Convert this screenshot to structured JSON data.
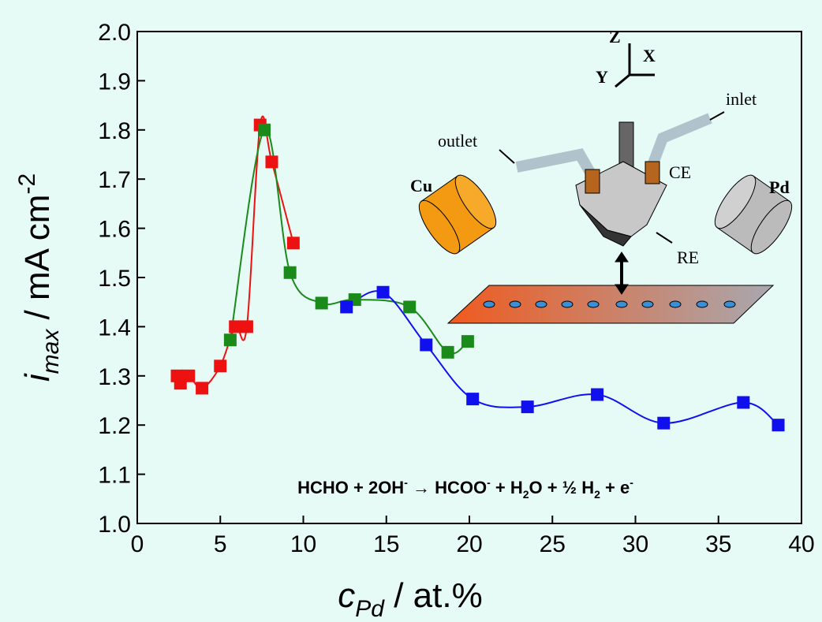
{
  "chart_data": {
    "type": "scatter-line",
    "xlabel": {
      "main": "c",
      "sub": "Pd",
      "rest": " / at.%"
    },
    "ylabel": {
      "main": "i",
      "sub": "max",
      "rest": " / mA cm",
      "sup": "-2"
    },
    "annotation": [
      "HCHO + 2OH",
      "-",
      " → HCOO",
      "-",
      " + H",
      "2",
      "O + ½ H",
      "2",
      " + e",
      "-"
    ],
    "inset_labels": {
      "z": "Z",
      "x": "X",
      "y": "Y",
      "inlet": "inlet",
      "outlet": "outlet",
      "cu": "Cu",
      "ce": "CE",
      "pd": "Pd",
      "re": "RE"
    },
    "xlim": [
      0,
      40
    ],
    "xticks": [
      0,
      5,
      10,
      15,
      20,
      25,
      30,
      35,
      40
    ],
    "ylim": [
      1.0,
      2.0
    ],
    "yticks": [
      {
        "value": 1.0,
        "label": "1.0"
      },
      1.1,
      1.2,
      1.3,
      1.4,
      1.5,
      1.6,
      1.7,
      1.8,
      1.9,
      {
        "value": 2.0,
        "label": "2.0"
      }
    ],
    "series": [
      {
        "color": "#ee1111",
        "x": [
          2.4,
          2.6,
          3.1,
          3.9,
          5.0,
          5.9,
          6.6,
          7.4,
          8.1,
          9.4
        ],
        "values": [
          1.3,
          1.285,
          1.3,
          1.275,
          1.32,
          1.4,
          1.4,
          1.81,
          1.735,
          1.57
        ]
      },
      {
        "color": "#1a8a1a",
        "x": [
          5.6,
          7.65,
          9.2,
          11.1,
          13.1,
          16.4,
          18.7,
          19.9
        ],
        "values": [
          1.373,
          1.8,
          1.51,
          1.448,
          1.455,
          1.44,
          1.348,
          1.37
        ]
      },
      {
        "color": "#1010ee",
        "x": [
          12.6,
          14.8,
          17.4,
          20.2,
          23.5,
          27.7,
          31.7,
          36.5,
          38.6
        ],
        "values": [
          1.44,
          1.47,
          1.363,
          1.253,
          1.237,
          1.262,
          1.204,
          1.246,
          1.2
        ]
      }
    ]
  }
}
